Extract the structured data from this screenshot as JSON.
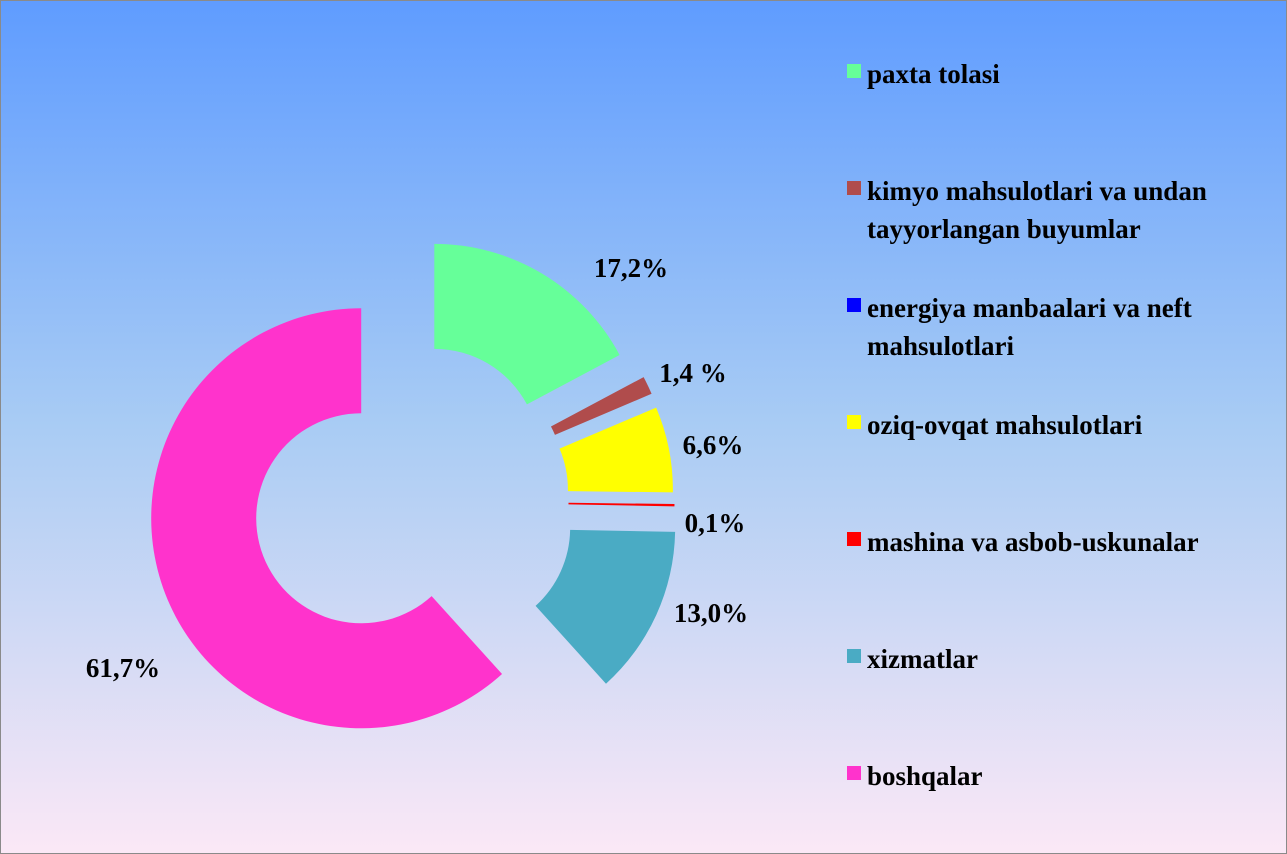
{
  "chart_data": {
    "type": "donut",
    "categories": [
      "paxta tolasi",
      "kimyo mahsulotlari va undan tayyorlangan buyumlar",
      "energiya manbaalari va neft mahsulotlari",
      "oziq-ovqat mahsulotlari",
      "mashina va asbob-uskunalar",
      "xizmatlar",
      "boshqalar"
    ],
    "values": [
      17.2,
      1.4,
      0,
      6.6,
      0.1,
      13.0,
      61.7
    ],
    "value_labels": [
      "17,2%",
      "1,4 %",
      null,
      "6,6%",
      "0,1%",
      "13,0%",
      "61,7%"
    ],
    "colors": [
      "#66ff99",
      "#b04c4c",
      "#0000ff",
      "#ffff00",
      "#ff0000",
      "#4aabc4",
      "#ff33cc"
    ],
    "legend": "right"
  }
}
